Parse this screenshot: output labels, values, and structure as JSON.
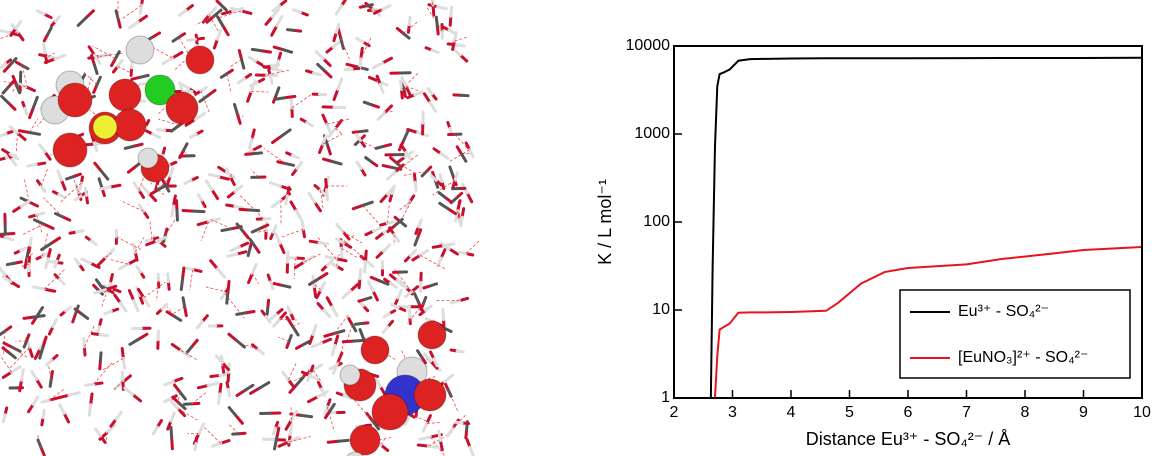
{
  "chart_data": {
    "type": "line",
    "x_label": "Distance Eu³⁺ - SO₄²⁻  /  Å",
    "y_label": "K  /  L mol⁻¹",
    "x": [
      2.63,
      2.66,
      2.7,
      2.74,
      2.78,
      2.85,
      2.95,
      3.1,
      3.3,
      3.6,
      4,
      4.6,
      4.8,
      5.2,
      5.6,
      6,
      7,
      7.6,
      8.5,
      9,
      10
    ],
    "series": [
      {
        "name": "Eu³⁺ - SO₄²⁻",
        "color": "#000000",
        "values": [
          1,
          30,
          700,
          3500,
          4800,
          5000,
          5400,
          6800,
          7100,
          7150,
          7200,
          7250,
          7250,
          7250,
          7250,
          7250,
          7280,
          7300,
          7300,
          7300,
          7350
        ]
      },
      {
        "name": "[EuNO₃]²⁺ - SO₄²⁻",
        "color": "#e8141c",
        "values": [
          null,
          null,
          1,
          3,
          6,
          6.4,
          7,
          9.3,
          9.4,
          9.4,
          9.5,
          9.8,
          12,
          20,
          27,
          30,
          33,
          38,
          44,
          48,
          52
        ]
      }
    ],
    "xlim": [
      2,
      10
    ],
    "xticks": [
      2,
      3,
      4,
      5,
      6,
      7,
      8,
      9,
      10
    ],
    "ylim": [
      1,
      10000
    ],
    "yticks": [
      1,
      10,
      100,
      1000,
      10000
    ],
    "yscale": "log",
    "legend": "lower right"
  }
}
